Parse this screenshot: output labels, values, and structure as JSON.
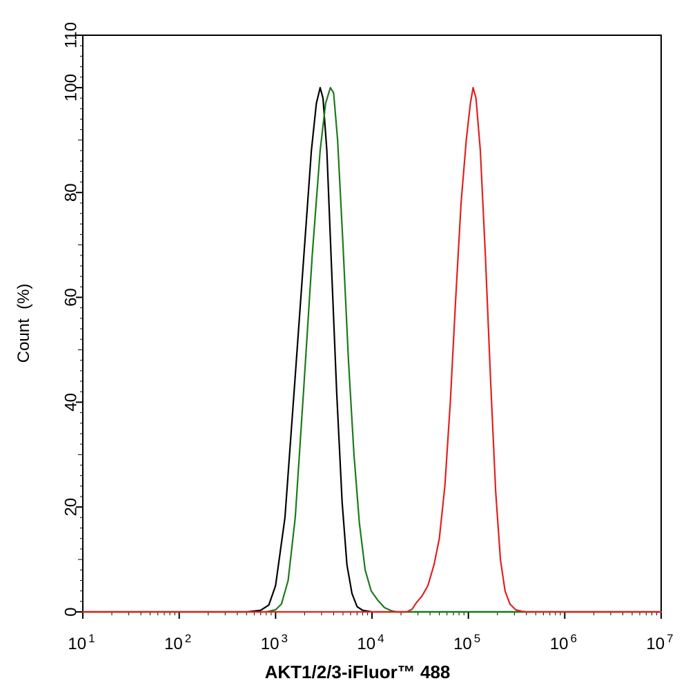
{
  "chart_data": {
    "type": "line",
    "title": "",
    "xlabel": "AKT1/2/3-iFluor™ 488",
    "ylabel": "Count  (%)",
    "x_scale": "log",
    "xlim": [
      10,
      10000000
    ],
    "ylim": [
      0,
      110
    ],
    "x_ticks": [
      {
        "base": "10",
        "exp": "1",
        "value": 10
      },
      {
        "base": "10",
        "exp": "2",
        "value": 100
      },
      {
        "base": "10",
        "exp": "3",
        "value": 1000
      },
      {
        "base": "10",
        "exp": "4",
        "value": 10000
      },
      {
        "base": "10",
        "exp": "5",
        "value": 100000
      },
      {
        "base": "10",
        "exp": "6",
        "value": 1000000
      },
      {
        "base": "10",
        "exp": "7",
        "value": 10000000
      }
    ],
    "y_ticks": [
      "0",
      "20",
      "40",
      "60",
      "80",
      "100",
      "110"
    ],
    "grid": false,
    "legend": "none",
    "series": [
      {
        "color": "#000000",
        "points": [
          [
            10,
            0
          ],
          [
            500,
            0
          ],
          [
            700,
            0.3
          ],
          [
            850,
            1.3
          ],
          [
            1000,
            5
          ],
          [
            1250,
            18
          ],
          [
            1600,
            45
          ],
          [
            2000,
            70
          ],
          [
            2350,
            88
          ],
          [
            2650,
            97
          ],
          [
            2900,
            100
          ],
          [
            3100,
            98
          ],
          [
            3400,
            88
          ],
          [
            3800,
            66
          ],
          [
            4300,
            42
          ],
          [
            4900,
            21
          ],
          [
            5500,
            9
          ],
          [
            6200,
            3.5
          ],
          [
            7000,
            1
          ],
          [
            8000,
            0.3
          ],
          [
            10000,
            0
          ],
          [
            10000000,
            0
          ]
        ]
      },
      {
        "color": "#1a7a1a",
        "points": [
          [
            10,
            0
          ],
          [
            800,
            0
          ],
          [
            1000,
            0.4
          ],
          [
            1150,
            1.5
          ],
          [
            1350,
            6
          ],
          [
            1600,
            18
          ],
          [
            1950,
            42
          ],
          [
            2400,
            68
          ],
          [
            2900,
            88
          ],
          [
            3300,
            97
          ],
          [
            3700,
            100
          ],
          [
            4000,
            99
          ],
          [
            4400,
            90
          ],
          [
            5000,
            70
          ],
          [
            5700,
            48
          ],
          [
            6500,
            30
          ],
          [
            7400,
            17
          ],
          [
            8500,
            8
          ],
          [
            9800,
            4
          ],
          [
            11500,
            2.2
          ],
          [
            13500,
            0.8
          ],
          [
            16000,
            0.2
          ],
          [
            18000,
            0
          ],
          [
            10000000,
            0
          ]
        ]
      },
      {
        "color": "#e02020",
        "points": [
          [
            10,
            0
          ],
          [
            23000,
            0
          ],
          [
            26000,
            0.5
          ],
          [
            29000,
            1.8
          ],
          [
            33000,
            3
          ],
          [
            38000,
            5
          ],
          [
            44000,
            9
          ],
          [
            50000,
            14
          ],
          [
            57000,
            24
          ],
          [
            65000,
            40
          ],
          [
            74000,
            60
          ],
          [
            84000,
            78
          ],
          [
            95000,
            90
          ],
          [
            105000,
            97
          ],
          [
            112000,
            100
          ],
          [
            120000,
            98
          ],
          [
            133000,
            88
          ],
          [
            150000,
            68
          ],
          [
            170000,
            44
          ],
          [
            192000,
            23
          ],
          [
            215000,
            10
          ],
          [
            240000,
            4
          ],
          [
            270000,
            1.5
          ],
          [
            310000,
            0.4
          ],
          [
            360000,
            0.1
          ],
          [
            400000,
            0
          ],
          [
            10000000,
            0
          ]
        ]
      }
    ]
  }
}
